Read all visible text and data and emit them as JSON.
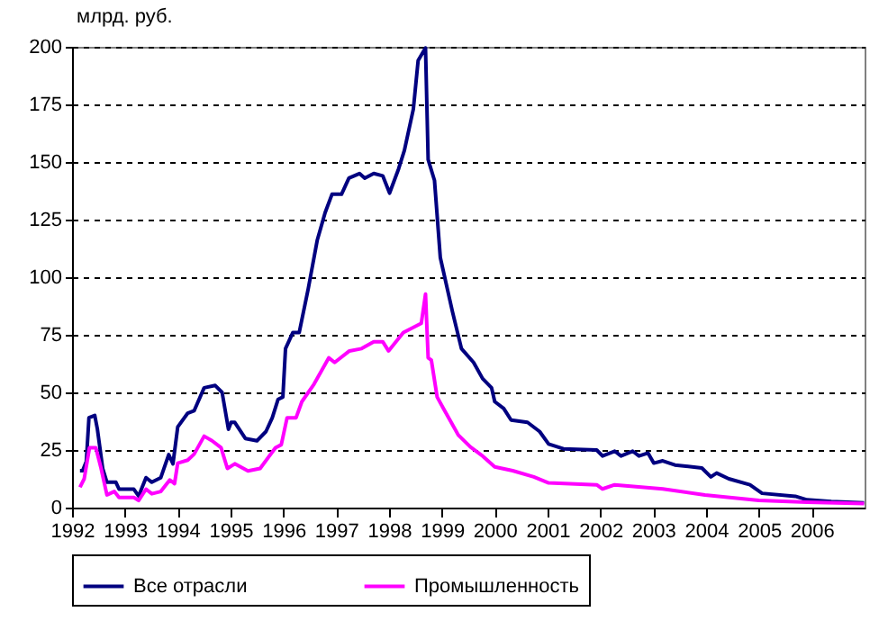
{
  "chart_data": {
    "type": "line",
    "ylabel": "млрд. руб.",
    "xlim": [
      1992,
      2007
    ],
    "ylim": [
      0,
      200
    ],
    "yticks": [
      0,
      25,
      50,
      75,
      100,
      125,
      150,
      175,
      200
    ],
    "xticks": [
      1992,
      1993,
      1994,
      1995,
      1996,
      1997,
      1998,
      1999,
      2000,
      2001,
      2002,
      2003,
      2004,
      2005,
      2006
    ],
    "grid": "y",
    "legend": "bottom",
    "line_style": "solid",
    "marker": "none",
    "series": [
      {
        "name": "Все отрасли",
        "color": "#000080",
        "x": [
          1992.15,
          1992.2,
          1992.27,
          1992.32,
          1992.43,
          1992.48,
          1992.58,
          1992.66,
          1992.83,
          1992.89,
          1993.17,
          1993.26,
          1993.4,
          1993.51,
          1993.68,
          1993.83,
          1993.91,
          1994.0,
          1994.19,
          1994.31,
          1994.5,
          1994.71,
          1994.84,
          1994.96,
          1995.01,
          1995.08,
          1995.28,
          1995.5,
          1995.67,
          1995.79,
          1995.9,
          1995.99,
          1996.04,
          1996.18,
          1996.3,
          1996.47,
          1996.64,
          1996.79,
          1996.92,
          1997.1,
          1997.24,
          1997.44,
          1997.54,
          1997.71,
          1997.88,
          1998.01,
          1998.18,
          1998.29,
          1998.46,
          1998.55,
          1998.69,
          1998.74,
          1998.86,
          1998.97,
          1999.2,
          1999.37,
          1999.6,
          1999.77,
          1999.94,
          2000.0,
          2000.17,
          2000.31,
          2000.62,
          2000.85,
          2001.02,
          2001.3,
          2001.93,
          2002.04,
          2002.27,
          2002.39,
          2002.61,
          2002.73,
          2002.9,
          2003.01,
          2003.18,
          2003.41,
          2003.92,
          2004.09,
          2004.2,
          2004.43,
          2004.83,
          2005.06,
          2005.69,
          2005.91,
          2006.37,
          2006.99
        ],
        "values": [
          16,
          16,
          20,
          39,
          40,
          34,
          17,
          11,
          11,
          8,
          8,
          5,
          13,
          11,
          13,
          23,
          19,
          35,
          41,
          42,
          52,
          53,
          50,
          34,
          37,
          37,
          30,
          29,
          33,
          39,
          47,
          48,
          69,
          76,
          76,
          95,
          116,
          128,
          136,
          136,
          143,
          145,
          143,
          145,
          144,
          136.5,
          147,
          155,
          173,
          194,
          199.5,
          151,
          142,
          108.5,
          85,
          69,
          63,
          56,
          52,
          46,
          43,
          38,
          37,
          33,
          27.6,
          25.5,
          25,
          22.4,
          24.5,
          22.4,
          24.5,
          22.4,
          23.7,
          19.3,
          20.3,
          18.5,
          17.2,
          13.3,
          15,
          12.5,
          9.9,
          6.2,
          4.9,
          3.4,
          2.6,
          2.1
        ]
      },
      {
        "name": "Промышленность",
        "color": "#ff00ff",
        "x": [
          1992.15,
          1992.23,
          1992.33,
          1992.45,
          1992.55,
          1992.66,
          1992.8,
          1992.89,
          1993.17,
          1993.26,
          1993.4,
          1993.51,
          1993.68,
          1993.85,
          1993.94,
          1994.0,
          1994.19,
          1994.31,
          1994.5,
          1994.65,
          1994.82,
          1994.94,
          1995.08,
          1995.33,
          1995.56,
          1995.85,
          1995.96,
          1996.07,
          1996.24,
          1996.35,
          1996.58,
          1996.86,
          1996.97,
          1997.25,
          1997.48,
          1997.71,
          1997.88,
          1997.99,
          1998.27,
          1998.61,
          1998.69,
          1998.74,
          1998.8,
          1998.91,
          1999.03,
          1999.31,
          1999.54,
          1999.77,
          2000.0,
          2000.34,
          2000.74,
          2001.02,
          2001.93,
          2002.04,
          2002.27,
          2003.18,
          2003.98,
          2004.32,
          2005.0,
          2005.91,
          2006.99
        ],
        "values": [
          8.8,
          12.5,
          26,
          26,
          17,
          5.5,
          7,
          4.4,
          4.4,
          3.1,
          8,
          6,
          7,
          12,
          10.4,
          19.3,
          20.6,
          23.2,
          31,
          29,
          26,
          17,
          19,
          15.9,
          17,
          26,
          27.3,
          39,
          39,
          46,
          53.6,
          65,
          63,
          68,
          69,
          72,
          72,
          68,
          76,
          80,
          92.7,
          65,
          64,
          48,
          43,
          31.5,
          26.3,
          22.4,
          17.7,
          16,
          13.3,
          10.7,
          9.9,
          8.1,
          9.9,
          8.1,
          5.5,
          4.7,
          3.1,
          2.3,
          1.8
        ]
      }
    ]
  }
}
